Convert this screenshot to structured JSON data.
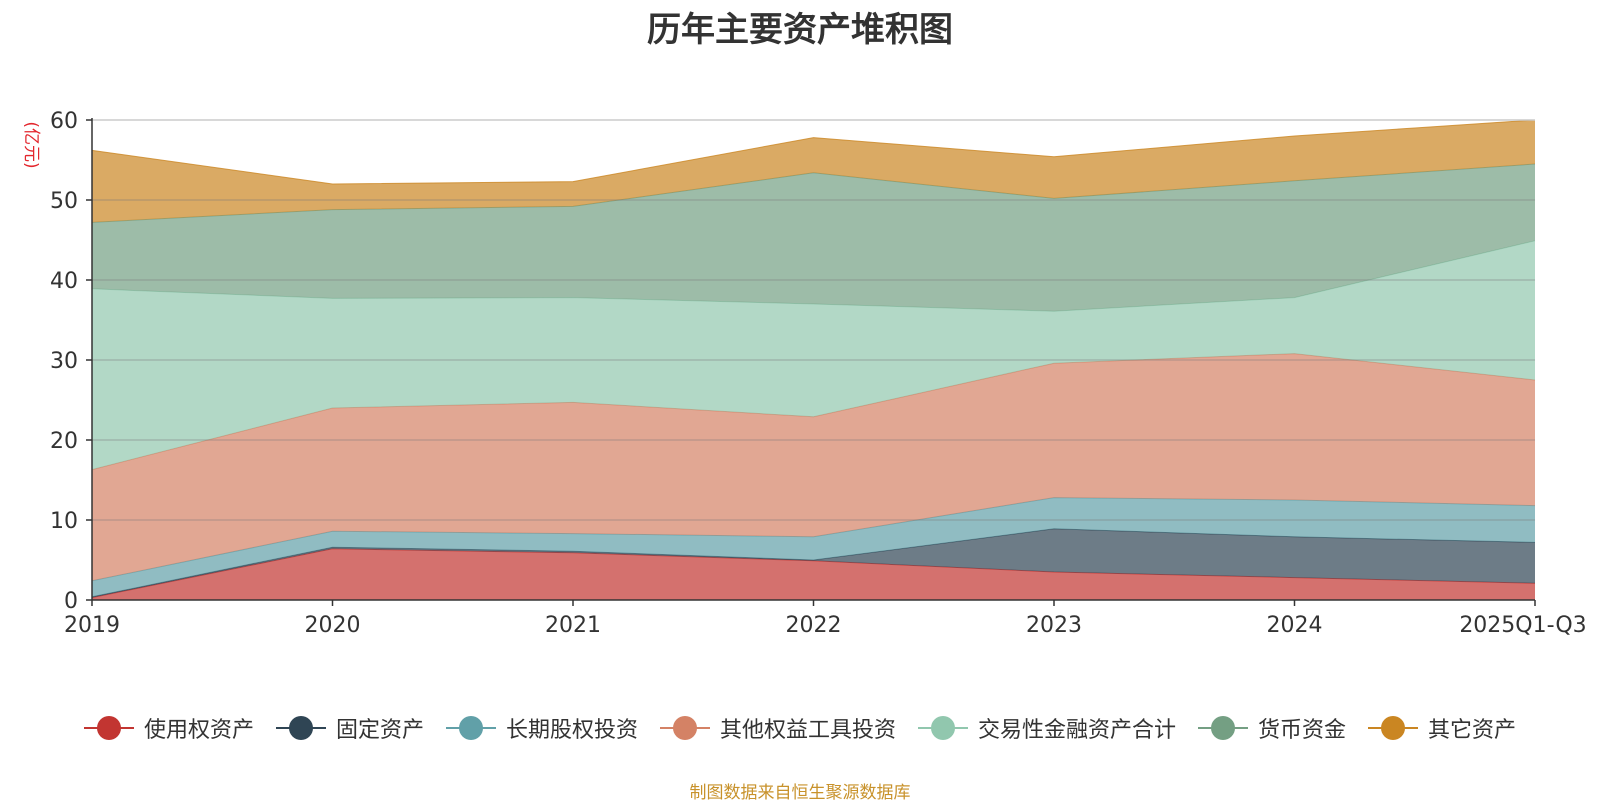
{
  "chart_data": {
    "type": "area",
    "stacked": true,
    "title": "历年主要资产堆积图",
    "unit_label": "(亿元)",
    "categories": [
      "2019",
      "2020",
      "2021",
      "2022",
      "2023",
      "2024",
      "2025Q1-Q3"
    ],
    "ylim": [
      0,
      60
    ],
    "yticks": [
      "0",
      "10",
      "20",
      "30",
      "40",
      "50",
      "60"
    ],
    "series": [
      {
        "name": "使用权资产",
        "color": "#c23531",
        "values": [
          0.3,
          6.4,
          5.9,
          4.9,
          3.5,
          2.8,
          2.1
        ]
      },
      {
        "name": "固定资产",
        "color": "#2f4554",
        "values": [
          0.1,
          0.2,
          0.2,
          0.1,
          5.4,
          5.1,
          5.1
        ]
      },
      {
        "name": "长期股权投资",
        "color": "#61a0a8",
        "values": [
          2.0,
          2.0,
          2.2,
          2.9,
          3.9,
          4.6,
          4.6
        ]
      },
      {
        "name": "其他权益工具投资",
        "color": "#d48265",
        "values": [
          13.9,
          15.4,
          16.4,
          15.0,
          16.8,
          18.3,
          15.7
        ]
      },
      {
        "name": "交易性金融资产合计",
        "color": "#91c7ae",
        "values": [
          22.6,
          13.7,
          13.1,
          14.1,
          6.5,
          7.0,
          17.4
        ]
      },
      {
        "name": "货币资金",
        "color": "#749f83",
        "values": [
          8.3,
          11.1,
          11.4,
          16.4,
          14.1,
          14.6,
          9.6
        ]
      },
      {
        "name": "其它资产",
        "color": "#ca8622",
        "values": [
          9.0,
          3.2,
          3.1,
          4.4,
          5.2,
          5.6,
          5.5
        ]
      }
    ],
    "legend_position": "bottom",
    "grid": true
  },
  "source_text": "制图数据来自恒生聚源数据库"
}
